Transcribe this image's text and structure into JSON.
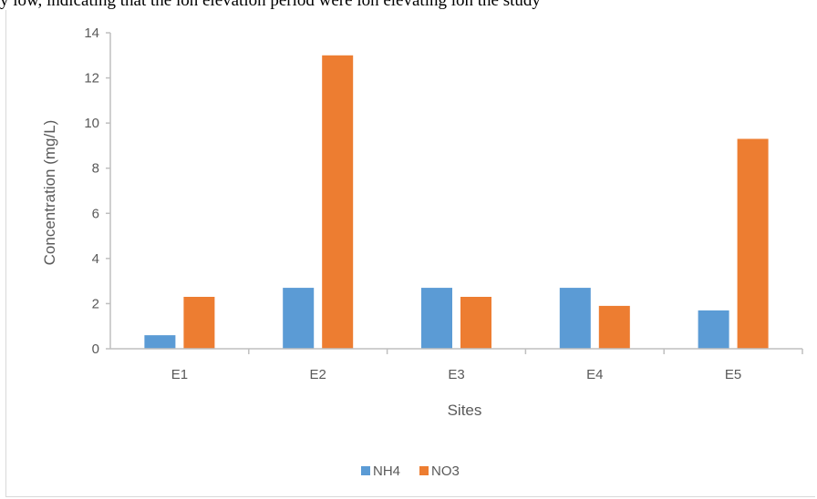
{
  "caption_fragment": "y low, indicating that the ion elevation period were ion elevating ion the study",
  "chart_data": {
    "type": "bar",
    "categories": [
      "E1",
      "E2",
      "E3",
      "E4",
      "E5"
    ],
    "series": [
      {
        "name": "NH4",
        "color": "#5b9bd5",
        "values": [
          0.6,
          2.7,
          2.7,
          2.7,
          1.7
        ]
      },
      {
        "name": "NO3",
        "color": "#ed7d31",
        "values": [
          2.3,
          13.0,
          2.3,
          1.9,
          9.3
        ]
      }
    ],
    "title": "",
    "xlabel": "Sites",
    "ylabel": "Concentration (mg/L)",
    "ylim": [
      0,
      14
    ],
    "yticks": [
      "0",
      "2",
      "4",
      "6",
      "8",
      "10",
      "12",
      "14"
    ],
    "grid": false,
    "legend_position": "bottom"
  }
}
